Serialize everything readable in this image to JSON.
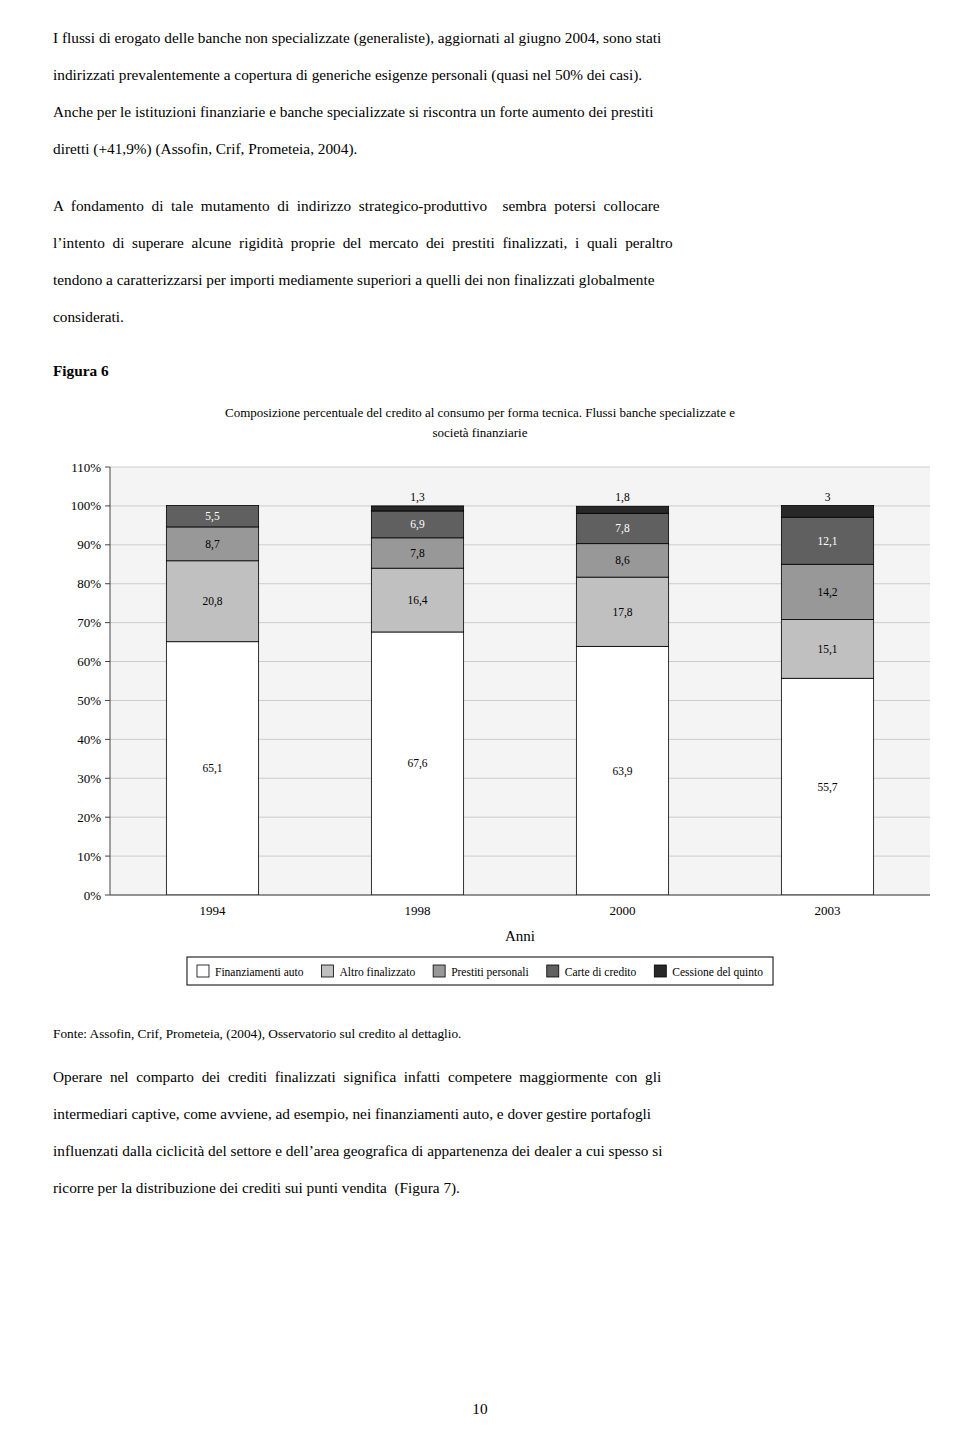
{
  "paragraphs_before": [
    [
      "I flussi di erogato delle banche non specializzate (generaliste), aggiornati al giugno 2004, sono stati",
      "indirizzati prevalentemente a copertura di generiche esigenze personali (quasi nel 50% dei casi).",
      "Anche per le istituzioni finanziarie e banche specializzate si riscontra un forte aumento dei prestiti",
      "diretti (+41,9%) (Assofin, Crif, Prometeia, 2004)."
    ],
    [
      "A  fondamento  di  tale  mutamento  di  indirizzo  strategico-produttivo    sembra  potersi  collocare",
      "l’intento  di  superare  alcune  rigidità  proprie  del  mercato  dei  prestiti  finalizzati,  i  quali  peraltro",
      "tendono a caratterizzarsi per importi mediamente superiori a quelli dei non finalizzati globalmente",
      "considerati."
    ]
  ],
  "figure_label": "Figura 6",
  "source": "Fonte: Assofin, Crif, Prometeia, (2004), Osservatorio sul credito al dettaglio.",
  "paragraphs_after": [
    [
      "Operare  nel  comparto  dei  crediti  finalizzati  significa  infatti  competere  maggiormente  con  gli",
      "intermediari captive, come avviene, ad esempio, nei finanziamenti auto, e dover gestire portafogli",
      "influenzati dalla ciclicità del settore e dell’area geografica di appartenenza dei dealer a cui spesso si",
      "ricorre per la distribuzione dei crediti sui punti vendita  (Figura 7)."
    ]
  ],
  "page_number": "10",
  "chart_data": {
    "type": "bar",
    "stacked": true,
    "title": "Composizione percentuale del credito al consumo per forma tecnica. Flussi banche specializzate e\nsocietà finanziarie",
    "x_label": "Anni",
    "categories": [
      "1994",
      "1998",
      "2000",
      "2003"
    ],
    "series": [
      {
        "name": "Finanziamenti auto",
        "color": "#ffffff",
        "values": [
          65.1,
          67.6,
          63.9,
          55.7
        ],
        "value_labels": [
          "65,1",
          "67,6",
          "63,9",
          "55,7"
        ]
      },
      {
        "name": "Altro finalizzato",
        "color": "#c0c0c0",
        "values": [
          20.8,
          16.4,
          17.8,
          15.1
        ],
        "value_labels": [
          "20,8",
          "16,4",
          "17,8",
          "15,1"
        ]
      },
      {
        "name": "Prestiti personali",
        "color": "#989898",
        "values": [
          8.7,
          7.8,
          8.6,
          14.2
        ],
        "value_labels": [
          "8,7",
          "7,8",
          "8,6",
          "14,2"
        ]
      },
      {
        "name": "Carte di credito",
        "color": "#606060",
        "values": [
          5.5,
          6.9,
          7.8,
          12.1
        ],
        "value_labels": [
          "5,5",
          "6,9",
          "7,8",
          "12,1"
        ]
      },
      {
        "name": "Cessione del quinto",
        "color": "#282828",
        "values": [
          0.0,
          1.3,
          1.8,
          3.0
        ],
        "value_labels": [
          null,
          "1,3",
          "1,8",
          "3"
        ]
      }
    ],
    "ylim": [
      0,
      110
    ],
    "yticks": [
      {
        "value": 0,
        "label": "0%"
      },
      {
        "value": 10,
        "label": "10%"
      },
      {
        "value": 20,
        "label": "20%"
      },
      {
        "value": 30,
        "label": "30%"
      },
      {
        "value": 40,
        "label": "40%"
      },
      {
        "value": 50,
        "label": "50%"
      },
      {
        "value": 60,
        "label": "60%"
      },
      {
        "value": 70,
        "label": "70%"
      },
      {
        "value": 80,
        "label": "80%"
      },
      {
        "value": 90,
        "label": "90%"
      },
      {
        "value": 100,
        "label": "100%"
      },
      {
        "value": 110,
        "label": "110%"
      }
    ],
    "grid": true,
    "data_labels": true,
    "legend": "bottom"
  }
}
